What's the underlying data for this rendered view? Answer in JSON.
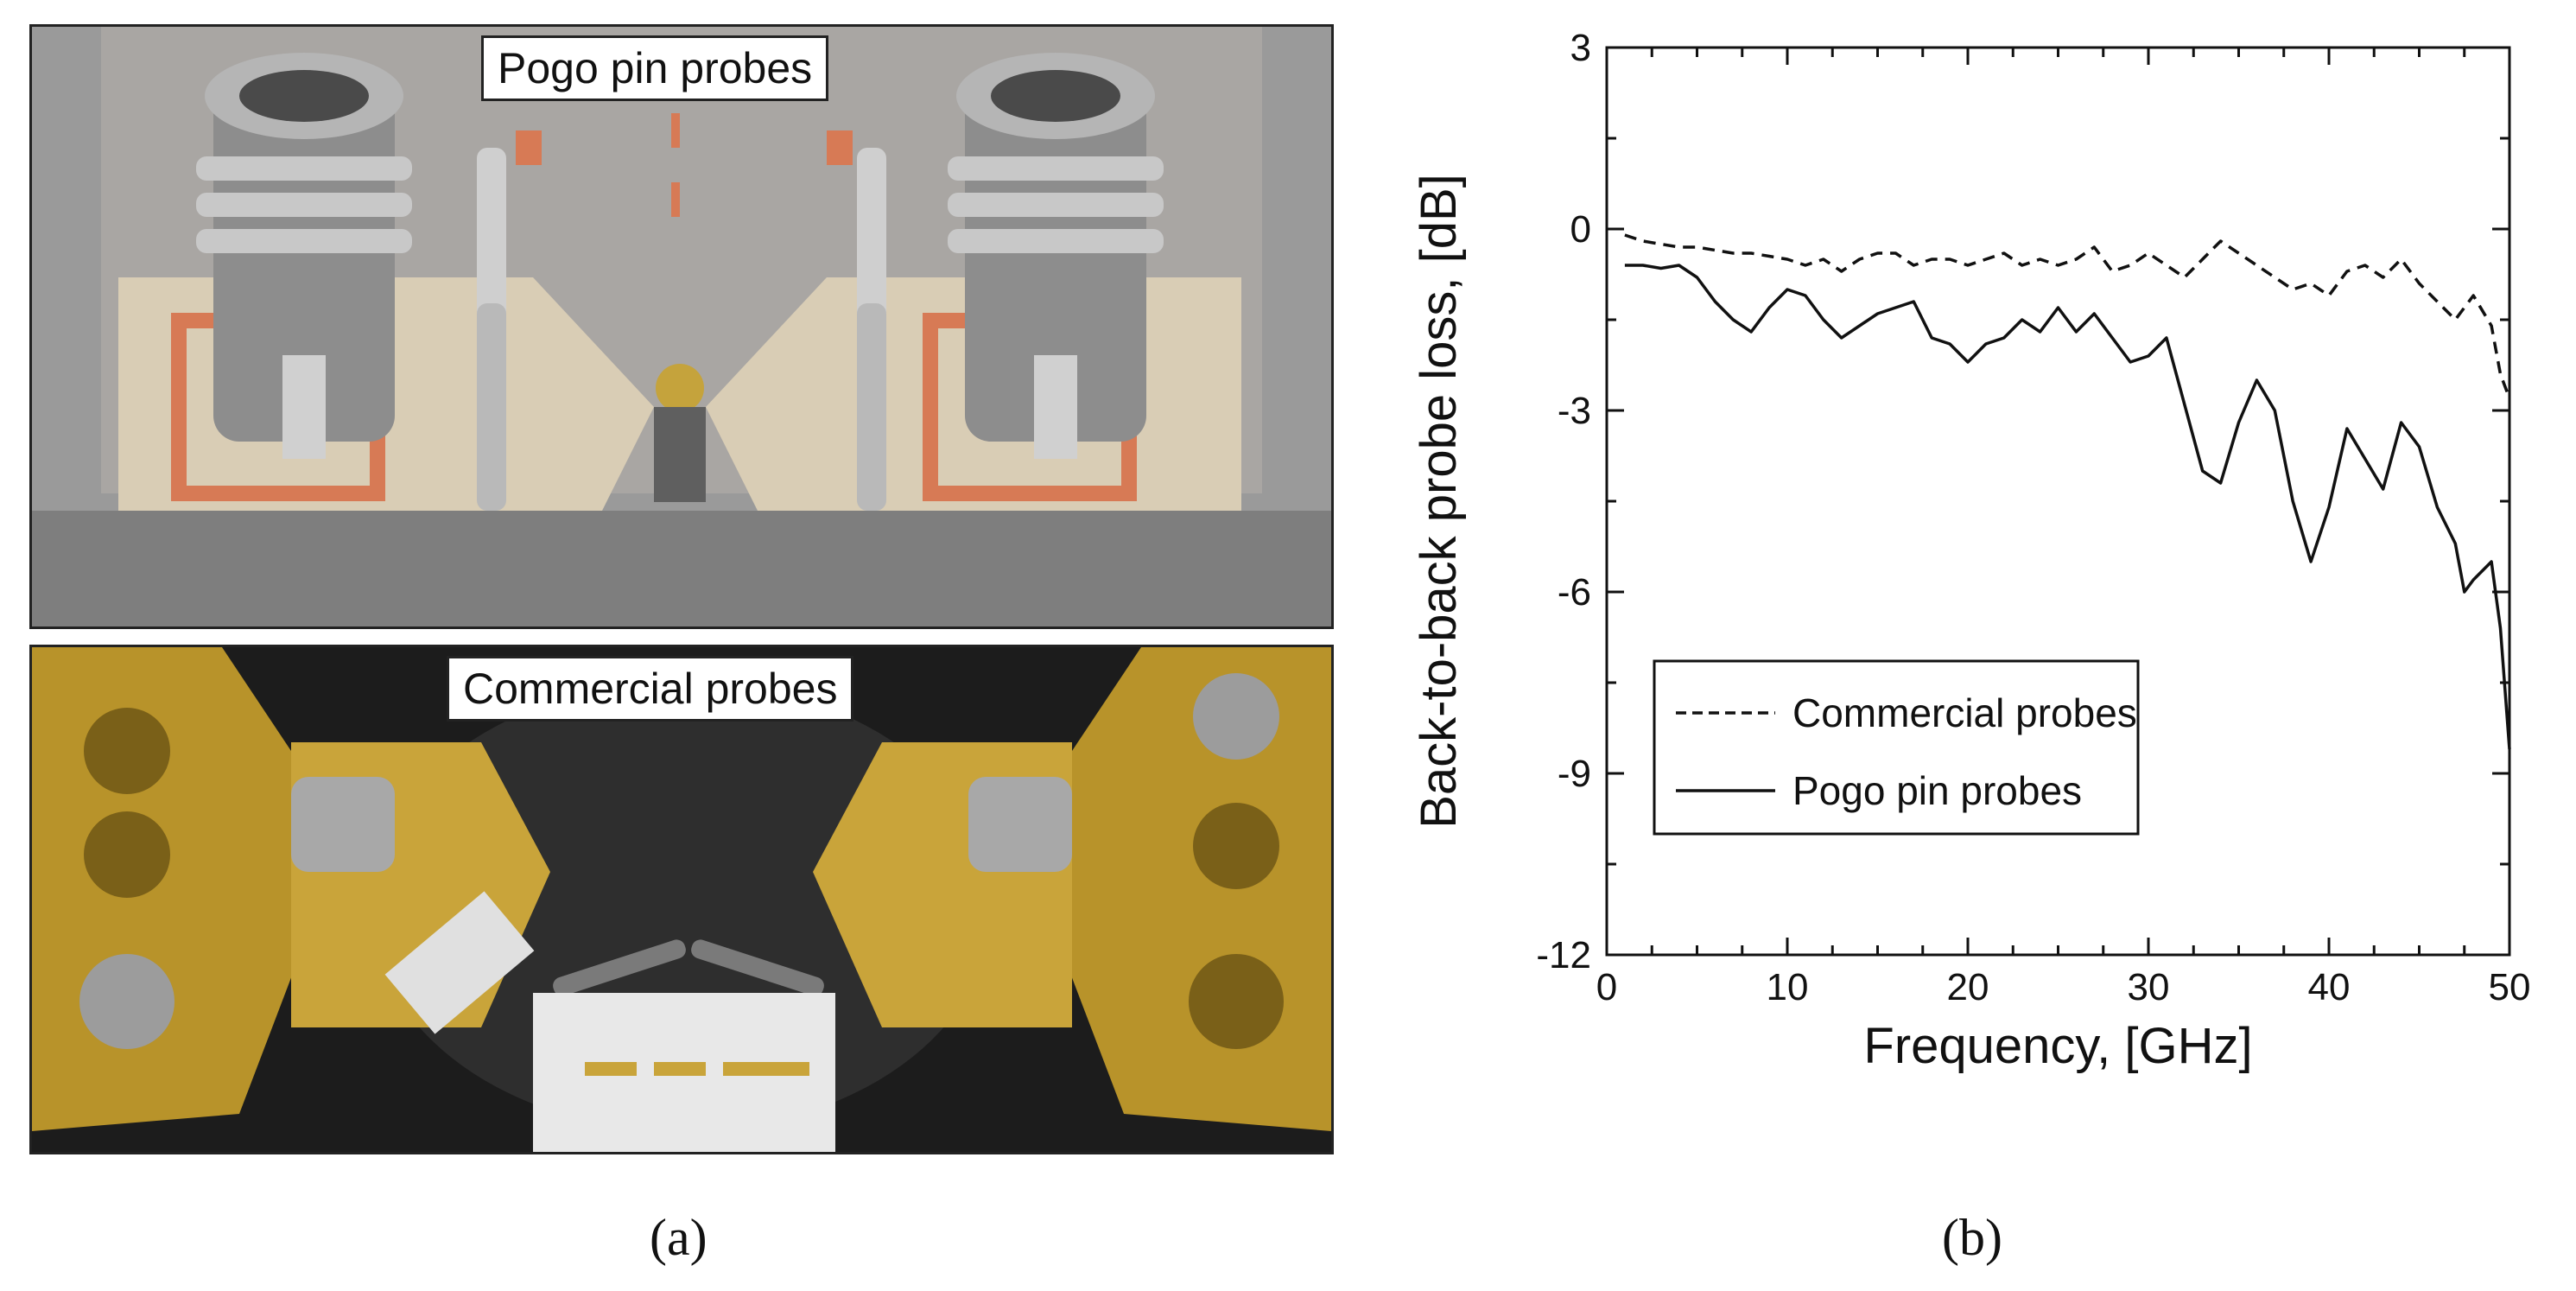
{
  "panels": {
    "a": {
      "tag": "(a)",
      "top_label": "Pogo pin probes",
      "bottom_label": "Commercial probes"
    },
    "b": {
      "tag": "(b)"
    }
  },
  "chart_data": {
    "type": "line",
    "xlabel": "Frequency, [GHz]",
    "ylabel": "Back-to-back probe loss, [dB]",
    "xlim": [
      0,
      50
    ],
    "ylim": [
      -12,
      3
    ],
    "xticks": [
      0,
      10,
      20,
      30,
      40,
      50
    ],
    "yticks": [
      3,
      0,
      -3,
      -6,
      -9,
      -12
    ],
    "grid": false,
    "legend_position": "bottom-left",
    "series": [
      {
        "name": "Commercial probes",
        "style": "dashed",
        "color": "#111111",
        "x": [
          1,
          2,
          3,
          4,
          5,
          6,
          7,
          8,
          9,
          10,
          11,
          12,
          13,
          14,
          15,
          16,
          17,
          18,
          19,
          20,
          21,
          22,
          23,
          24,
          25,
          26,
          27,
          28,
          29,
          30,
          31,
          32,
          33,
          34,
          35,
          36,
          37,
          38,
          39,
          40,
          41,
          42,
          43,
          44,
          45,
          46,
          47,
          48,
          49,
          49.5,
          50
        ],
        "y": [
          -0.1,
          -0.2,
          -0.25,
          -0.3,
          -0.3,
          -0.35,
          -0.4,
          -0.4,
          -0.45,
          -0.5,
          -0.6,
          -0.5,
          -0.7,
          -0.5,
          -0.4,
          -0.4,
          -0.6,
          -0.5,
          -0.5,
          -0.6,
          -0.5,
          -0.4,
          -0.6,
          -0.5,
          -0.6,
          -0.5,
          -0.3,
          -0.7,
          -0.6,
          -0.4,
          -0.6,
          -0.8,
          -0.5,
          -0.2,
          -0.4,
          -0.6,
          -0.8,
          -1.0,
          -0.9,
          -1.1,
          -0.7,
          -0.6,
          -0.8,
          -0.5,
          -0.9,
          -1.2,
          -1.5,
          -1.1,
          -1.6,
          -2.4,
          -2.8
        ]
      },
      {
        "name": "Pogo pin probes",
        "style": "solid",
        "color": "#111111",
        "x": [
          1,
          2,
          3,
          4,
          5,
          6,
          7,
          8,
          9,
          10,
          11,
          12,
          13,
          14,
          15,
          16,
          17,
          18,
          19,
          20,
          21,
          22,
          23,
          24,
          25,
          26,
          27,
          28,
          29,
          30,
          31,
          32,
          33,
          34,
          35,
          36,
          37,
          38,
          39,
          40,
          41,
          42,
          43,
          44,
          45,
          46,
          47,
          47.5,
          48,
          49,
          49.5,
          50
        ],
        "y": [
          -0.6,
          -0.6,
          -0.65,
          -0.6,
          -0.8,
          -1.2,
          -1.5,
          -1.7,
          -1.3,
          -1.0,
          -1.1,
          -1.5,
          -1.8,
          -1.6,
          -1.4,
          -1.3,
          -1.2,
          -1.8,
          -1.9,
          -2.2,
          -1.9,
          -1.8,
          -1.5,
          -1.7,
          -1.3,
          -1.7,
          -1.4,
          -1.8,
          -2.2,
          -2.1,
          -1.8,
          -2.9,
          -4.0,
          -4.2,
          -3.2,
          -2.5,
          -3.0,
          -4.5,
          -5.5,
          -4.6,
          -3.3,
          -3.8,
          -4.3,
          -3.2,
          -3.6,
          -4.6,
          -5.2,
          -6.0,
          -5.8,
          -5.5,
          -6.6,
          -8.6
        ]
      }
    ]
  }
}
